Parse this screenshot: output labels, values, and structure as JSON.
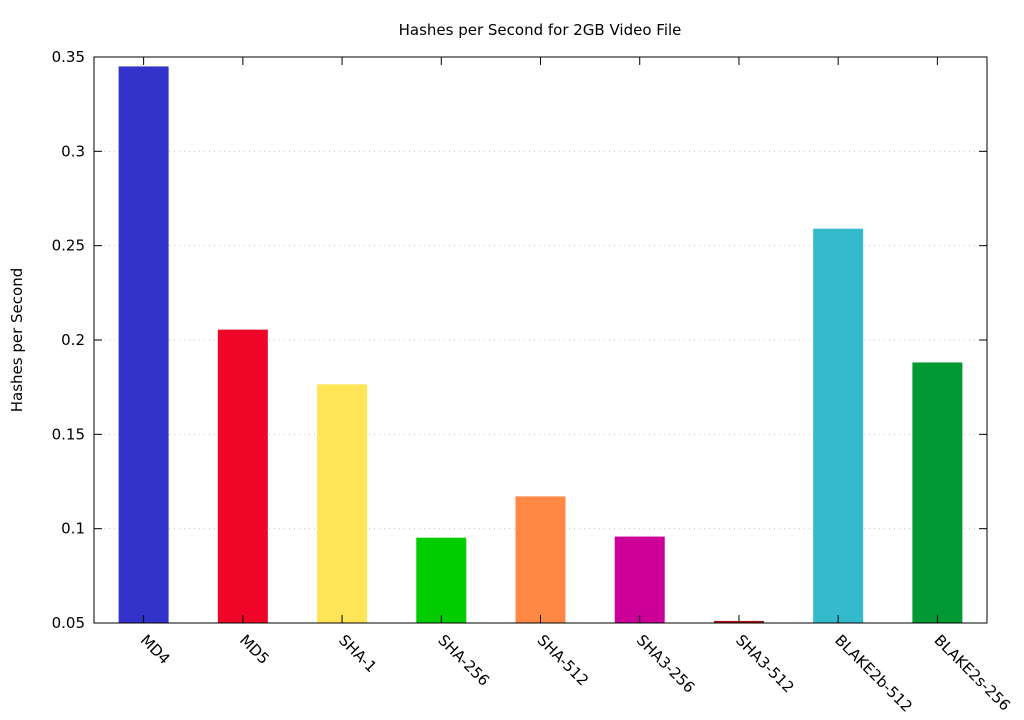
{
  "chart_data": {
    "type": "bar",
    "title": "Hashes per Second for 2GB Video File",
    "xlabel": "",
    "ylabel": "Hashes per Second",
    "ylim": [
      0.05,
      0.35
    ],
    "yticks": [
      "0.05",
      "0.1",
      "0.15",
      "0.2",
      "0.25",
      "0.3",
      "0.35"
    ],
    "grid": "horizontal dotted",
    "legend": "none",
    "categories": [
      "MD4",
      "MD5",
      "SHA-1",
      "SHA-256",
      "SHA-512",
      "SHA3-256",
      "SHA3-512",
      "BLAKE2b-512",
      "BLAKE2s-256"
    ],
    "values": [
      0.345,
      0.2055,
      0.1765,
      0.0952,
      0.1171,
      0.0958,
      0.0511,
      0.259,
      0.1881
    ],
    "colors": [
      "#3333cc",
      "#ee0528",
      "#ffe555",
      "#00cc00",
      "#ff8844",
      "#cc0099",
      "#aa0f0f",
      "#33bbcc",
      "#009933"
    ]
  }
}
